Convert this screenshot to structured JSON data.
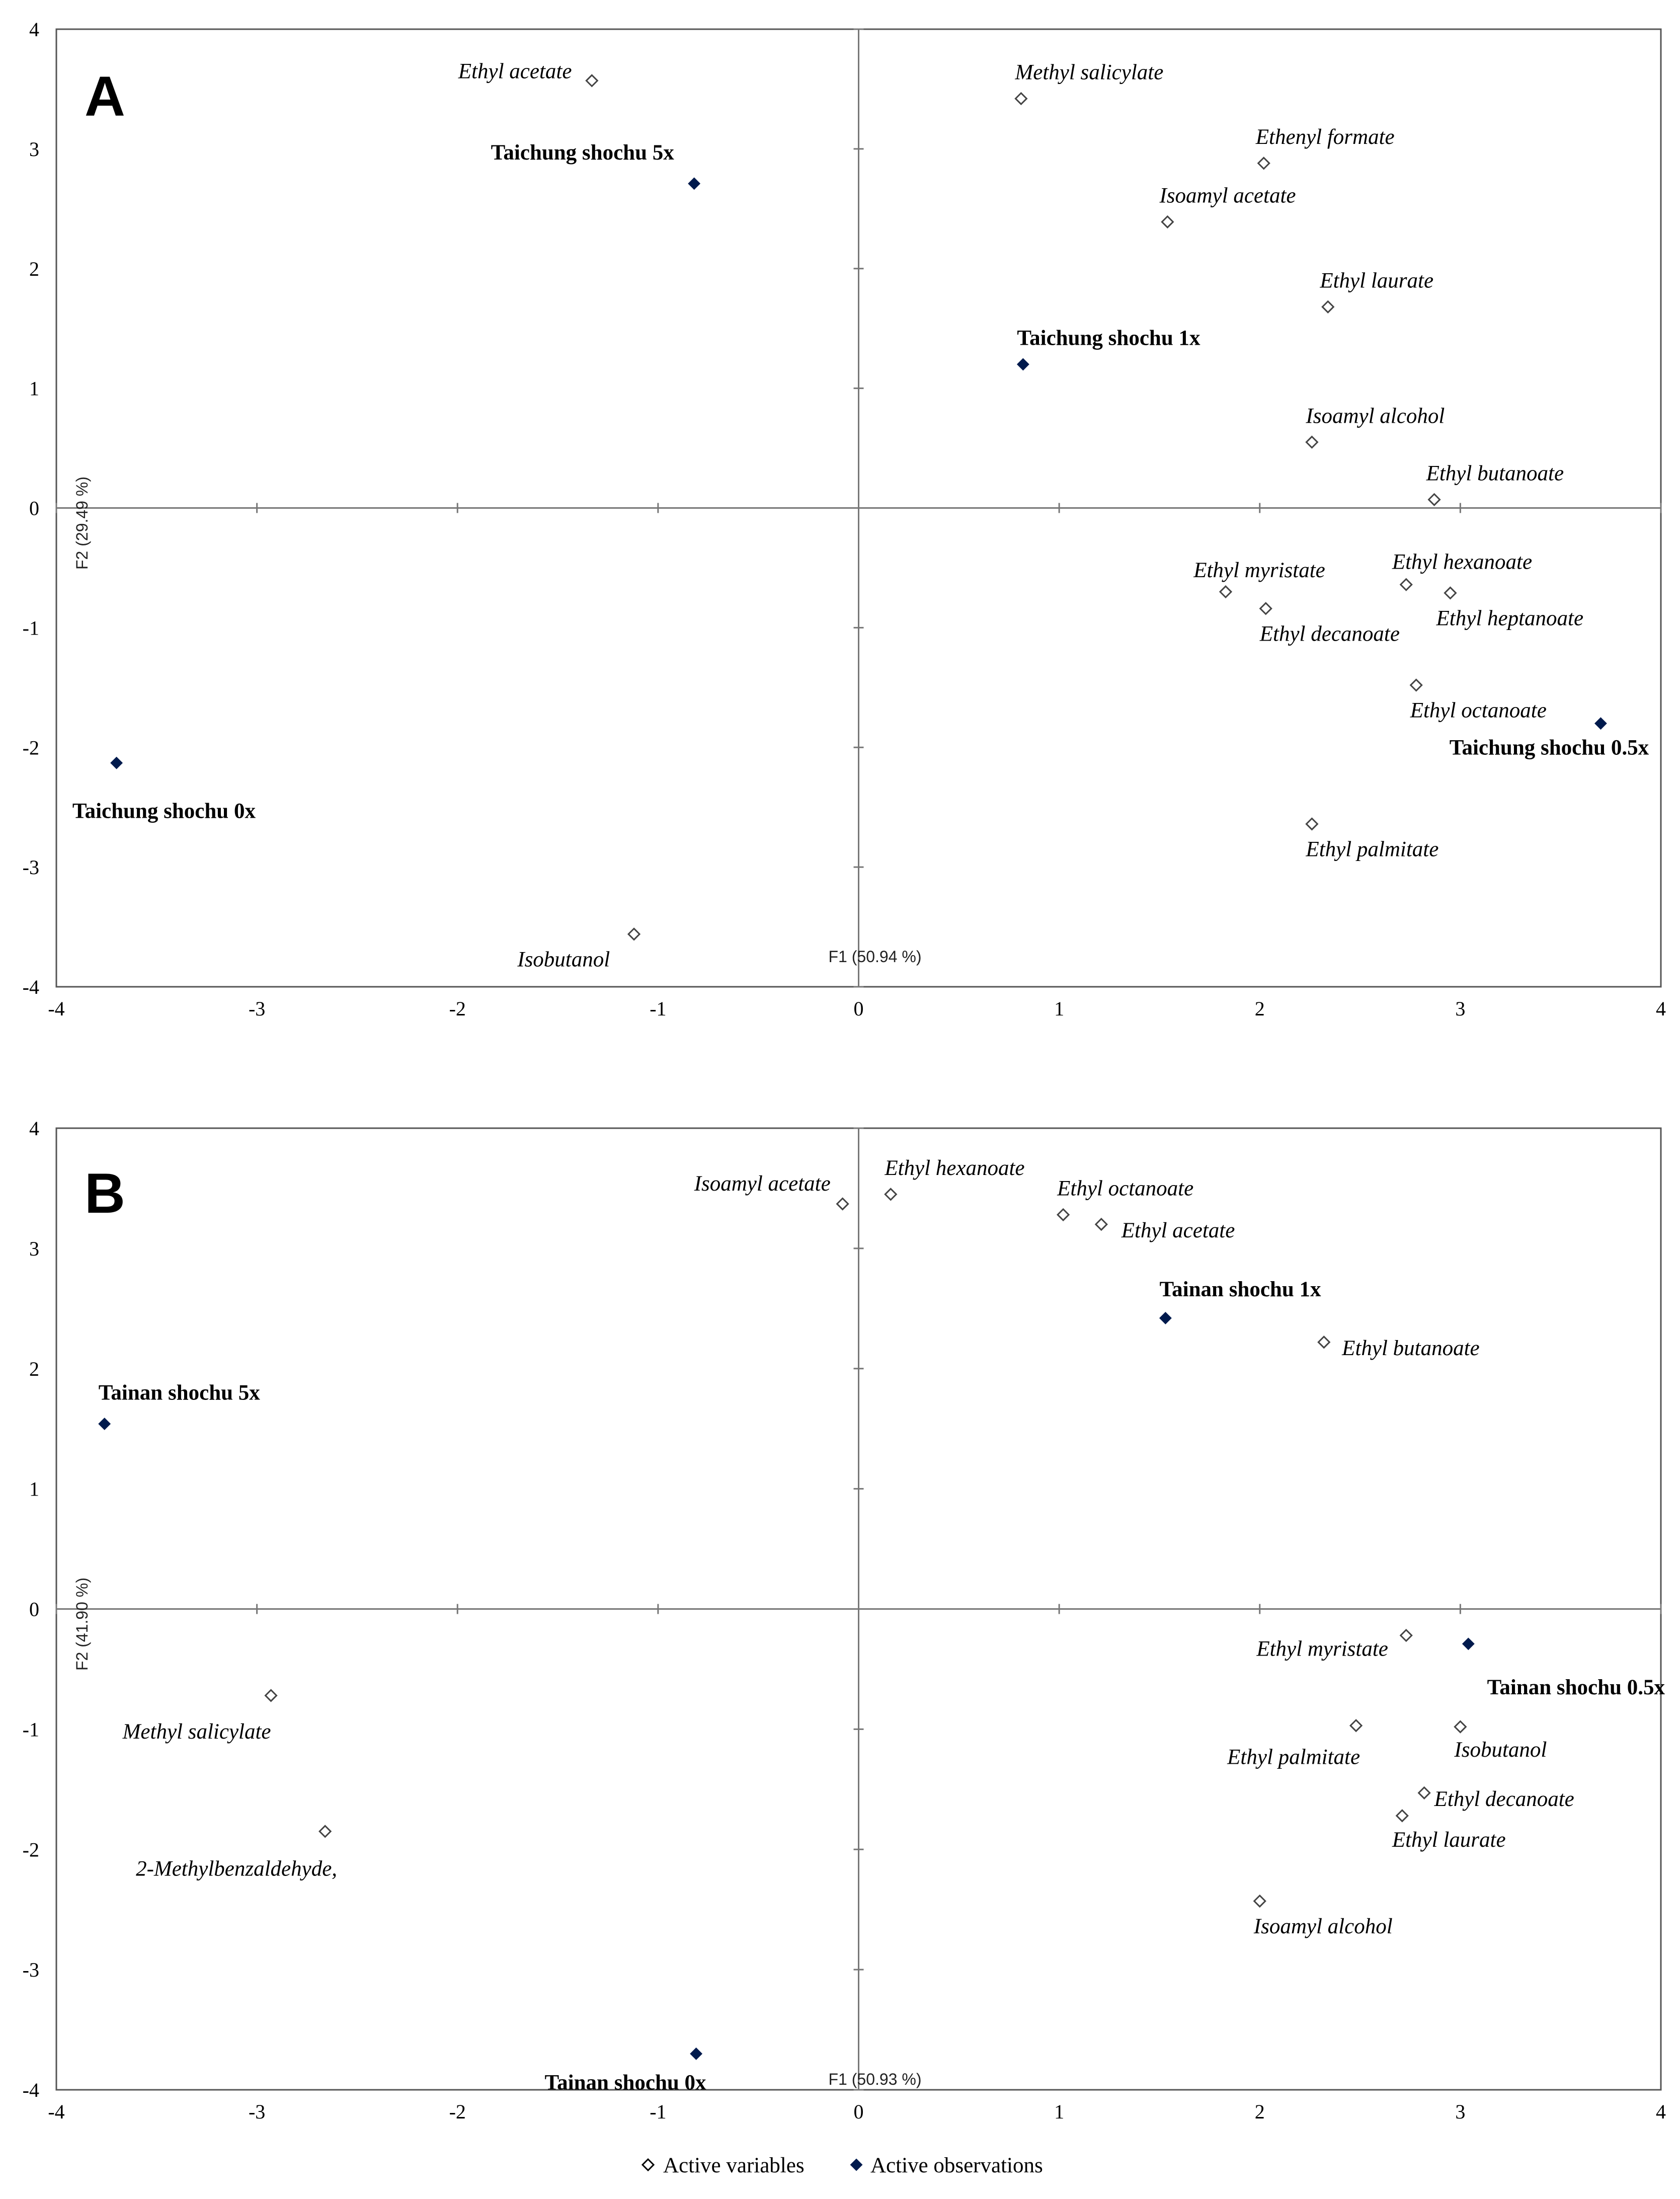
{
  "legend": {
    "variables_label": "Active variables",
    "observations_label": "Active observations"
  },
  "chart_data": [
    {
      "type": "scatter",
      "panel": "A",
      "xlabel": "F1 (50.94 %)",
      "ylabel": "F2 (29.49 %)",
      "xlim": [
        -4,
        4
      ],
      "ylim": [
        -4,
        4
      ],
      "xticks": [
        "-4",
        "-3",
        "-2",
        "-1",
        "0",
        "1",
        "2",
        "3",
        "4"
      ],
      "yticks": [
        "-4",
        "-3",
        "-2",
        "-1",
        "0",
        "1",
        "2",
        "3",
        "4"
      ],
      "grid": false,
      "legend_position": "bottom",
      "series": [
        {
          "name": "Active variables",
          "points": [
            {
              "label": "Ethyl acetate",
              "x": -1.33,
              "y": 3.57,
              "anchor": "end",
              "lx": -0.1,
              "ly": 0.08
            },
            {
              "label": "Methyl salicylate",
              "x": 0.81,
              "y": 3.42,
              "anchor": "start",
              "lx": -0.03,
              "ly": 0.22
            },
            {
              "label": "Ethenyl formate",
              "x": 2.02,
              "y": 2.88,
              "anchor": "start",
              "lx": -0.04,
              "ly": 0.22
            },
            {
              "label": "Isoamyl acetate",
              "x": 1.54,
              "y": 2.39,
              "anchor": "start",
              "lx": -0.04,
              "ly": 0.22
            },
            {
              "label": "Ethyl laurate",
              "x": 2.34,
              "y": 1.68,
              "anchor": "start",
              "lx": -0.04,
              "ly": 0.22
            },
            {
              "label": "Isoamyl alcohol",
              "x": 2.26,
              "y": 0.55,
              "anchor": "start",
              "lx": -0.03,
              "ly": 0.22
            },
            {
              "label": "Ethyl butanoate",
              "x": 2.87,
              "y": 0.07,
              "anchor": "start",
              "lx": -0.04,
              "ly": 0.22
            },
            {
              "label": "Ethyl myristate",
              "x": 1.83,
              "y": -0.7,
              "anchor": "start",
              "lx": -0.16,
              "ly": 0.18
            },
            {
              "label": "Ethyl hexanoate",
              "x": 2.73,
              "y": -0.64,
              "anchor": "start",
              "lx": -0.07,
              "ly": 0.19
            },
            {
              "label": "Ethyl decanoate",
              "x": 2.03,
              "y": -0.84,
              "anchor": "start",
              "lx": -0.03,
              "ly": -0.21
            },
            {
              "label": "Ethyl heptanoate",
              "x": 2.95,
              "y": -0.71,
              "anchor": "start",
              "lx": -0.07,
              "ly": -0.21
            },
            {
              "label": "Ethyl octanoate",
              "x": 2.78,
              "y": -1.48,
              "anchor": "start",
              "lx": -0.03,
              "ly": -0.21
            },
            {
              "label": "Ethyl palmitate",
              "x": 2.26,
              "y": -2.64,
              "anchor": "start",
              "lx": -0.03,
              "ly": -0.21
            },
            {
              "label": "Isobutanol",
              "x": -1.12,
              "y": -3.56,
              "anchor": "end",
              "lx": -0.12,
              "ly": -0.21
            }
          ]
        },
        {
          "name": "Active observations",
          "points": [
            {
              "label": "Taichung shochu 5x",
              "x": -0.82,
              "y": 2.71,
              "anchor": "end",
              "lx": -0.1,
              "ly": 0.26
            },
            {
              "label": "Taichung shochu 1x",
              "x": 0.82,
              "y": 1.2,
              "anchor": "start",
              "lx": -0.03,
              "ly": 0.22
            },
            {
              "label": "Taichung shochu 0x",
              "x": -3.7,
              "y": -2.13,
              "anchor": "start",
              "lx": -0.22,
              "ly": -0.4
            },
            {
              "label": "Taichung shochu 0.5x",
              "x": 3.7,
              "y": -1.8,
              "anchor": "end",
              "lx": 0.24,
              "ly": -0.2
            }
          ]
        }
      ]
    },
    {
      "type": "scatter",
      "panel": "B",
      "xlabel": "F1 (50.93 %)",
      "ylabel": "F2 (41.90 %)",
      "xlim": [
        -4,
        4
      ],
      "ylim": [
        -4,
        4
      ],
      "xticks": [
        "-4",
        "-3",
        "-2",
        "-1",
        "0",
        "1",
        "2",
        "3",
        "4"
      ],
      "yticks": [
        "-4",
        "-3",
        "-2",
        "-1",
        "0",
        "1",
        "2",
        "3",
        "4"
      ],
      "grid": false,
      "legend_position": "bottom",
      "series": [
        {
          "name": "Active variables",
          "points": [
            {
              "label": "Isoamyl acetate",
              "x": -0.08,
              "y": 3.37,
              "anchor": "end",
              "lx": -0.06,
              "ly": 0.17
            },
            {
              "label": "Ethyl hexanoate",
              "x": 0.16,
              "y": 3.45,
              "anchor": "start",
              "lx": -0.03,
              "ly": 0.22
            },
            {
              "label": "Ethyl octanoate",
              "x": 1.02,
              "y": 3.28,
              "anchor": "start",
              "lx": -0.03,
              "ly": 0.22
            },
            {
              "label": "Ethyl acetate",
              "x": 1.21,
              "y": 3.2,
              "anchor": "start",
              "lx": 0.1,
              "ly": -0.05
            },
            {
              "label": "Ethyl butanoate",
              "x": 2.32,
              "y": 2.22,
              "anchor": "start",
              "lx": 0.09,
              "ly": -0.05
            },
            {
              "label": "Ethyl myristate",
              "x": 2.73,
              "y": -0.22,
              "anchor": "end",
              "lx": -0.09,
              "ly": -0.11
            },
            {
              "label": "Methyl salicylate",
              "x": -2.93,
              "y": -0.72,
              "anchor": "end",
              "lx": 0.0,
              "ly": -0.3
            },
            {
              "label": "Ethyl palmitate",
              "x": 2.48,
              "y": -0.97,
              "anchor": "end",
              "lx": 0.02,
              "ly": -0.26
            },
            {
              "label": "Isobutanol",
              "x": 3.0,
              "y": -0.98,
              "anchor": "start",
              "lx": -0.03,
              "ly": -0.19
            },
            {
              "label": "Ethyl decanoate",
              "x": 2.82,
              "y": -1.53,
              "anchor": "start",
              "lx": 0.05,
              "ly": -0.05
            },
            {
              "label": "2-Methylbenzaldehyde,",
              "x": -2.66,
              "y": -1.85,
              "anchor": "end",
              "lx": 0.06,
              "ly": -0.31
            },
            {
              "label": "Ethyl laurate",
              "x": 2.71,
              "y": -1.72,
              "anchor": "start",
              "lx": -0.05,
              "ly": -0.2
            },
            {
              "label": "Isoamyl alcohol",
              "x": 2.0,
              "y": -2.43,
              "anchor": "start",
              "lx": -0.03,
              "ly": -0.21
            }
          ]
        },
        {
          "name": "Active observations",
          "points": [
            {
              "label": "Tainan shochu 5x",
              "x": -3.76,
              "y": 1.54,
              "anchor": "start",
              "lx": -0.03,
              "ly": 0.26
            },
            {
              "label": "Tainan shochu 1x",
              "x": 1.53,
              "y": 2.42,
              "anchor": "start",
              "lx": -0.03,
              "ly": 0.24
            },
            {
              "label": "Tainan shochu 0x",
              "x": -0.81,
              "y": -3.7,
              "anchor": "end",
              "lx": 0.05,
              "ly": -0.24
            },
            {
              "label": "Tainan shochu 0.5x",
              "x": 3.04,
              "y": -0.29,
              "anchor": "end",
              "lx": 0.98,
              "ly": -0.36
            }
          ]
        }
      ]
    }
  ]
}
